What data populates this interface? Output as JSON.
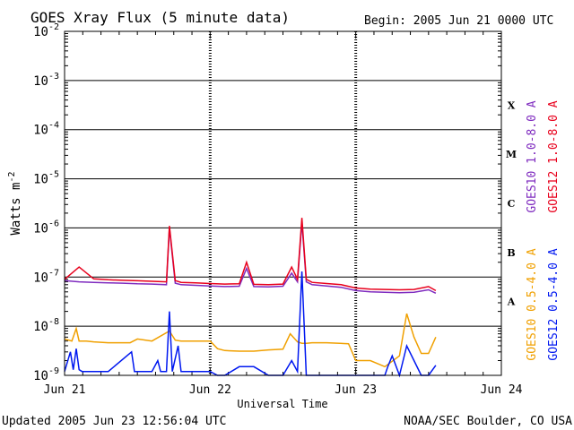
{
  "chart_data": {
    "type": "line",
    "title": "GOES Xray Flux (5 minute data)",
    "begin_label": "Begin:  2005 Jun 21 0000 UTC",
    "xlabel": "Universal Time",
    "ylabel": "Watts m",
    "ylabel_exp": "-2",
    "x_ticks": [
      "Jun 21",
      "Jun 22",
      "Jun 23",
      "Jun 24"
    ],
    "xlim_days": [
      0,
      3
    ],
    "ylim_log10": [
      -9,
      -2
    ],
    "y_ticks": [
      {
        "base": "10",
        "exp": "-2"
      },
      {
        "base": "10",
        "exp": "-3"
      },
      {
        "base": "10",
        "exp": "-4"
      },
      {
        "base": "10",
        "exp": "-5"
      },
      {
        "base": "10",
        "exp": "-6"
      },
      {
        "base": "10",
        "exp": "-7"
      },
      {
        "base": "10",
        "exp": "-8"
      },
      {
        "base": "10",
        "exp": "-9"
      }
    ],
    "flare_classes": [
      {
        "label": "X",
        "log10": -3.5
      },
      {
        "label": "M",
        "log10": -4.5
      },
      {
        "label": "C",
        "log10": -5.5
      },
      {
        "label": "B",
        "log10": -6.5
      },
      {
        "label": "A",
        "log10": -7.5
      }
    ],
    "series": [
      {
        "name": "GOES10 1.0-8.0 A",
        "color": "#7f2bbf",
        "x": [
          0,
          0.1,
          0.2,
          0.3,
          0.4,
          0.5,
          0.6,
          0.7,
          0.72,
          0.76,
          0.8,
          0.9,
          1.0,
          1.1,
          1.2,
          1.25,
          1.3,
          1.4,
          1.5,
          1.56,
          1.6,
          1.63,
          1.66,
          1.7,
          1.8,
          1.9,
          2.0,
          2.1,
          2.2,
          2.3,
          2.4,
          2.5,
          2.55
        ],
        "y": [
          8.5e-08,
          8e-08,
          7.8e-08,
          7.6e-08,
          7.5e-08,
          7.3e-08,
          7.2e-08,
          7e-08,
          1e-06,
          7.5e-08,
          7e-08,
          6.8e-08,
          6.6e-08,
          6.4e-08,
          6.5e-08,
          1.5e-07,
          6.4e-08,
          6.3e-08,
          6.5e-08,
          1.2e-07,
          8e-08,
          1.3e-06,
          8e-08,
          7e-08,
          6.6e-08,
          6.2e-08,
          5.3e-08,
          5e-08,
          4.9e-08,
          4.8e-08,
          4.9e-08,
          5.5e-08,
          4.7e-08
        ]
      },
      {
        "name": "GOES12 1.0-8.0 A",
        "color": "#e8001c",
        "x": [
          0,
          0.1,
          0.2,
          0.3,
          0.4,
          0.5,
          0.6,
          0.7,
          0.72,
          0.76,
          0.8,
          0.9,
          1.0,
          1.1,
          1.2,
          1.25,
          1.3,
          1.4,
          1.5,
          1.56,
          1.6,
          1.63,
          1.66,
          1.7,
          1.8,
          1.9,
          2.0,
          2.1,
          2.2,
          2.3,
          2.4,
          2.5,
          2.55
        ],
        "y": [
          9e-08,
          1.6e-07,
          9.2e-08,
          8.8e-08,
          8.6e-08,
          8.4e-08,
          8.2e-08,
          8e-08,
          1.1e-06,
          8.5e-08,
          7.8e-08,
          7.6e-08,
          7.4e-08,
          7.2e-08,
          7.3e-08,
          2e-07,
          7.1e-08,
          7e-08,
          7.2e-08,
          1.6e-07,
          9e-08,
          1.6e-06,
          9e-08,
          7.8e-08,
          7.4e-08,
          7e-08,
          6e-08,
          5.7e-08,
          5.6e-08,
          5.5e-08,
          5.6e-08,
          6.4e-08,
          5.3e-08
        ]
      },
      {
        "name": "GOES10 0.5-4.0 A",
        "color": "#f0a000",
        "x": [
          0,
          0.05,
          0.08,
          0.1,
          0.15,
          0.2,
          0.3,
          0.45,
          0.5,
          0.6,
          0.72,
          0.76,
          0.8,
          0.9,
          1.0,
          1.05,
          1.1,
          1.2,
          1.3,
          1.4,
          1.5,
          1.55,
          1.6,
          1.63,
          1.66,
          1.7,
          1.8,
          1.95,
          2.0,
          2.1,
          2.2,
          2.3,
          2.35,
          2.4,
          2.45,
          2.5,
          2.55
        ],
        "y": [
          5.5e-09,
          5e-09,
          9e-09,
          5e-09,
          5e-09,
          4.8e-09,
          4.6e-09,
          4.6e-09,
          5.5e-09,
          5e-09,
          8e-09,
          5.2e-09,
          5e-09,
          5e-09,
          5e-09,
          3.5e-09,
          3.2e-09,
          3.1e-09,
          3.1e-09,
          3.3e-09,
          3.4e-09,
          7e-09,
          4.8e-09,
          4.5e-09,
          4.5e-09,
          4.6e-09,
          4.6e-09,
          4.4e-09,
          2e-09,
          2e-09,
          1.5e-09,
          2.5e-09,
          1.8e-08,
          6e-09,
          2.8e-09,
          2.8e-09,
          6e-09
        ]
      },
      {
        "name": "GOES12 0.5-4.0 A",
        "color": "#0018f0",
        "x": [
          0,
          0.04,
          0.06,
          0.08,
          0.1,
          0.12,
          0.2,
          0.3,
          0.46,
          0.48,
          0.5,
          0.6,
          0.64,
          0.66,
          0.7,
          0.72,
          0.74,
          0.78,
          0.8,
          0.9,
          1.0,
          1.05,
          1.1,
          1.2,
          1.3,
          1.4,
          1.5,
          1.56,
          1.6,
          1.63,
          1.66,
          1.7,
          1.8,
          1.95,
          2.0,
          2.05,
          2.1,
          2.15,
          2.2,
          2.22,
          2.25,
          2.3,
          2.35,
          2.4,
          2.45,
          2.5,
          2.55
        ],
        "y": [
          1.2e-09,
          3e-09,
          1.3e-09,
          3.5e-09,
          1.3e-09,
          1.2e-09,
          1.2e-09,
          1.2e-09,
          3e-09,
          1.2e-09,
          1.2e-09,
          1.2e-09,
          2e-09,
          1.2e-09,
          1.2e-09,
          2e-08,
          1.2e-09,
          4e-09,
          1.2e-09,
          1.2e-09,
          1.2e-09,
          1e-09,
          1e-09,
          1.5e-09,
          1.5e-09,
          1e-09,
          1e-09,
          2e-09,
          1.2e-09,
          1.3e-07,
          1e-09,
          1e-09,
          1e-09,
          1e-09,
          1e-09,
          1e-09,
          1e-09,
          1e-09,
          1e-09,
          1.5e-09,
          2.5e-09,
          1e-09,
          4e-09,
          2e-09,
          1e-09,
          1e-09,
          1.6e-09
        ]
      }
    ],
    "right_legend": [
      {
        "text": "GOES10 1.0-8.0 A",
        "color": "#7f2bbf",
        "side": "upper"
      },
      {
        "text": "GOES12 1.0-8.0 A",
        "color": "#e8001c",
        "side": "upper"
      },
      {
        "text": "GOES10 0.5-4.0 A",
        "color": "#f0a000",
        "side": "lower"
      },
      {
        "text": "GOES12 0.5-4.0 A",
        "color": "#0018f0",
        "side": "lower"
      }
    ],
    "grid": true,
    "footer_left": "Updated 2005 Jun 23 12:56:04 UTC",
    "footer_right": "NOAA/SEC Boulder, CO USA"
  }
}
